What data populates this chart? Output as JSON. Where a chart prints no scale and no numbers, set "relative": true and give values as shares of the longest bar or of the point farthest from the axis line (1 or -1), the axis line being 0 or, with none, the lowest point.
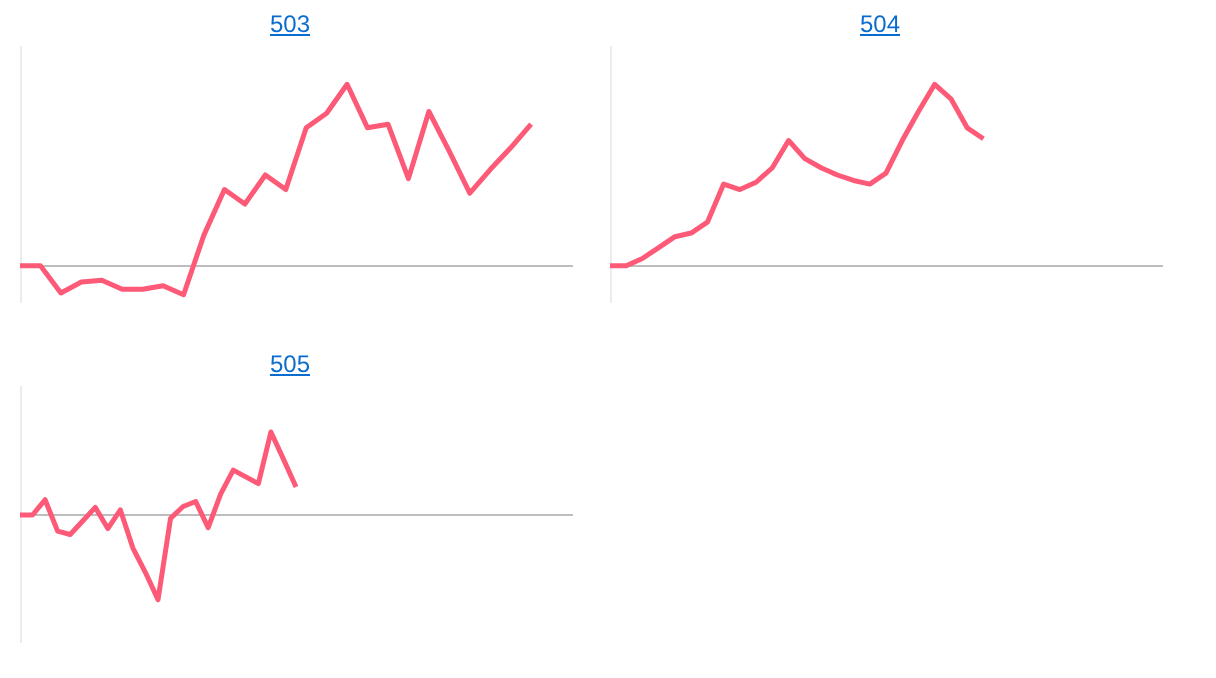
{
  "chart_data": [
    {
      "type": "line",
      "title": "503",
      "relative": true,
      "marker": "none",
      "color": "#fd5a78",
      "categories": [
        null,
        null,
        null,
        null,
        null,
        null,
        null,
        null,
        null,
        null,
        null,
        null,
        null,
        null,
        null,
        null,
        null,
        null,
        null,
        null,
        null,
        null,
        null,
        null,
        null,
        null,
        null,
        null
      ],
      "values": [
        0,
        0,
        -0.15,
        -0.09,
        -0.08,
        -0.13,
        -0.13,
        -0.11,
        -0.16,
        0.17,
        0.42,
        0.34,
        0.5,
        0.42,
        0.76,
        0.84,
        1,
        0.76,
        0.78,
        0.48,
        0.85,
        0.63,
        0.4,
        0.53,
        0.65,
        0.78,
        null,
        null
      ]
    },
    {
      "type": "line",
      "title": "504",
      "relative": true,
      "marker": "none",
      "color": "#fd5a78",
      "categories": [
        null,
        null,
        null,
        null,
        null,
        null,
        null,
        null,
        null,
        null,
        null,
        null,
        null,
        null,
        null,
        null,
        null,
        null,
        null,
        null,
        null,
        null,
        null,
        null,
        null,
        null,
        null,
        null,
        null,
        null,
        null,
        null,
        null,
        null,
        null
      ],
      "values": [
        0,
        0,
        0.04,
        0.1,
        0.16,
        0.18,
        0.24,
        0.45,
        0.42,
        0.46,
        0.54,
        0.69,
        0.59,
        0.54,
        0.5,
        0.47,
        0.45,
        0.51,
        0.69,
        0.85,
        1,
        0.92,
        0.76,
        0.7,
        null,
        null,
        null,
        null,
        null,
        null,
        null,
        null,
        null,
        null,
        null
      ]
    },
    {
      "type": "line",
      "title": "505",
      "relative": true,
      "marker": "none",
      "color": "#fd5a78",
      "categories": [
        null,
        null,
        null,
        null,
        null,
        null,
        null,
        null,
        null,
        null,
        null,
        null,
        null,
        null,
        null,
        null,
        null,
        null,
        null,
        null,
        null,
        null,
        null,
        null,
        null,
        null,
        null,
        null,
        null,
        null,
        null,
        null,
        null,
        null,
        null,
        null,
        null,
        null,
        null,
        null,
        null,
        null,
        null,
        null,
        null
      ],
      "values": [
        0,
        0,
        0.18,
        -0.19,
        -0.23,
        -0.07,
        0.09,
        -0.16,
        0.06,
        -0.39,
        -0.68,
        -1,
        -0.04,
        0.1,
        0.16,
        -0.15,
        0.25,
        0.53,
        0.45,
        0.37,
        0.98,
        0.66,
        0.33,
        null,
        null,
        null,
        null,
        null,
        null,
        null,
        null,
        null,
        null,
        null,
        null,
        null,
        null,
        null,
        null,
        null,
        null,
        null,
        null,
        null,
        null
      ]
    }
  ]
}
